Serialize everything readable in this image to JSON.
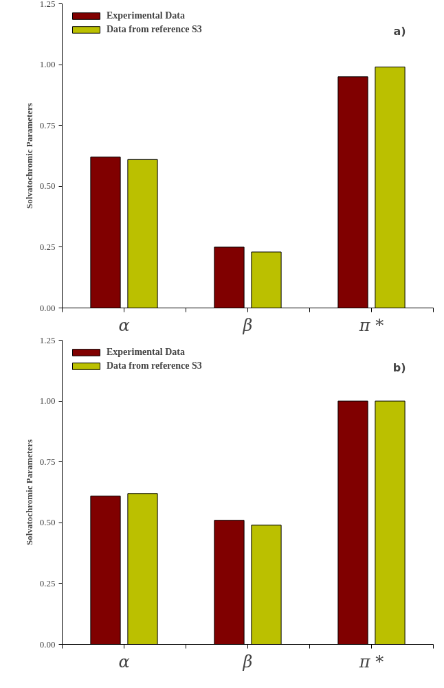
{
  "chart_data": [
    {
      "type": "bar",
      "ylabel": "Solvatochromic Parameters",
      "categories": [
        "α",
        "β",
        "π *"
      ],
      "ylim": [
        0,
        1.25
      ],
      "yticks": [
        {
          "value": 0,
          "label": "0.00"
        },
        {
          "value": 0.25,
          "label": "0.25"
        },
        {
          "value": 0.5,
          "label": "0.50"
        },
        {
          "value": 0.75,
          "label": "0.75"
        },
        {
          "value": 1,
          "label": "1.00"
        },
        {
          "value": 1.25,
          "label": "1.25"
        }
      ],
      "grid": false,
      "legend": "top left",
      "annotations": [
        "a)"
      ],
      "series": [
        {
          "name": "Experimental Data",
          "color": "#800000",
          "values": [
            0.62,
            0.25,
            0.95
          ]
        },
        {
          "name": "Data from reference S3",
          "color": "#bbc000",
          "values": [
            0.61,
            0.23,
            0.99
          ]
        }
      ]
    },
    {
      "type": "bar",
      "ylabel": "Solvatochromic Parameters",
      "categories": [
        "α",
        "β",
        "π *"
      ],
      "ylim": [
        0,
        1.25
      ],
      "yticks": [
        {
          "value": 0,
          "label": "0.00"
        },
        {
          "value": 0.25,
          "label": "0.25"
        },
        {
          "value": 0.5,
          "label": "0.50"
        },
        {
          "value": 0.75,
          "label": "0.75"
        },
        {
          "value": 1,
          "label": "1.00"
        },
        {
          "value": 1.25,
          "label": "1.25"
        }
      ],
      "grid": false,
      "legend": "top left",
      "annotations": [
        "b)"
      ],
      "series": [
        {
          "name": "Experimental Data",
          "color": "#800000",
          "values": [
            0.61,
            0.51,
            1.0
          ]
        },
        {
          "name": "Data from reference S3",
          "color": "#bbc000",
          "values": [
            0.62,
            0.49,
            1.0
          ]
        }
      ]
    }
  ]
}
